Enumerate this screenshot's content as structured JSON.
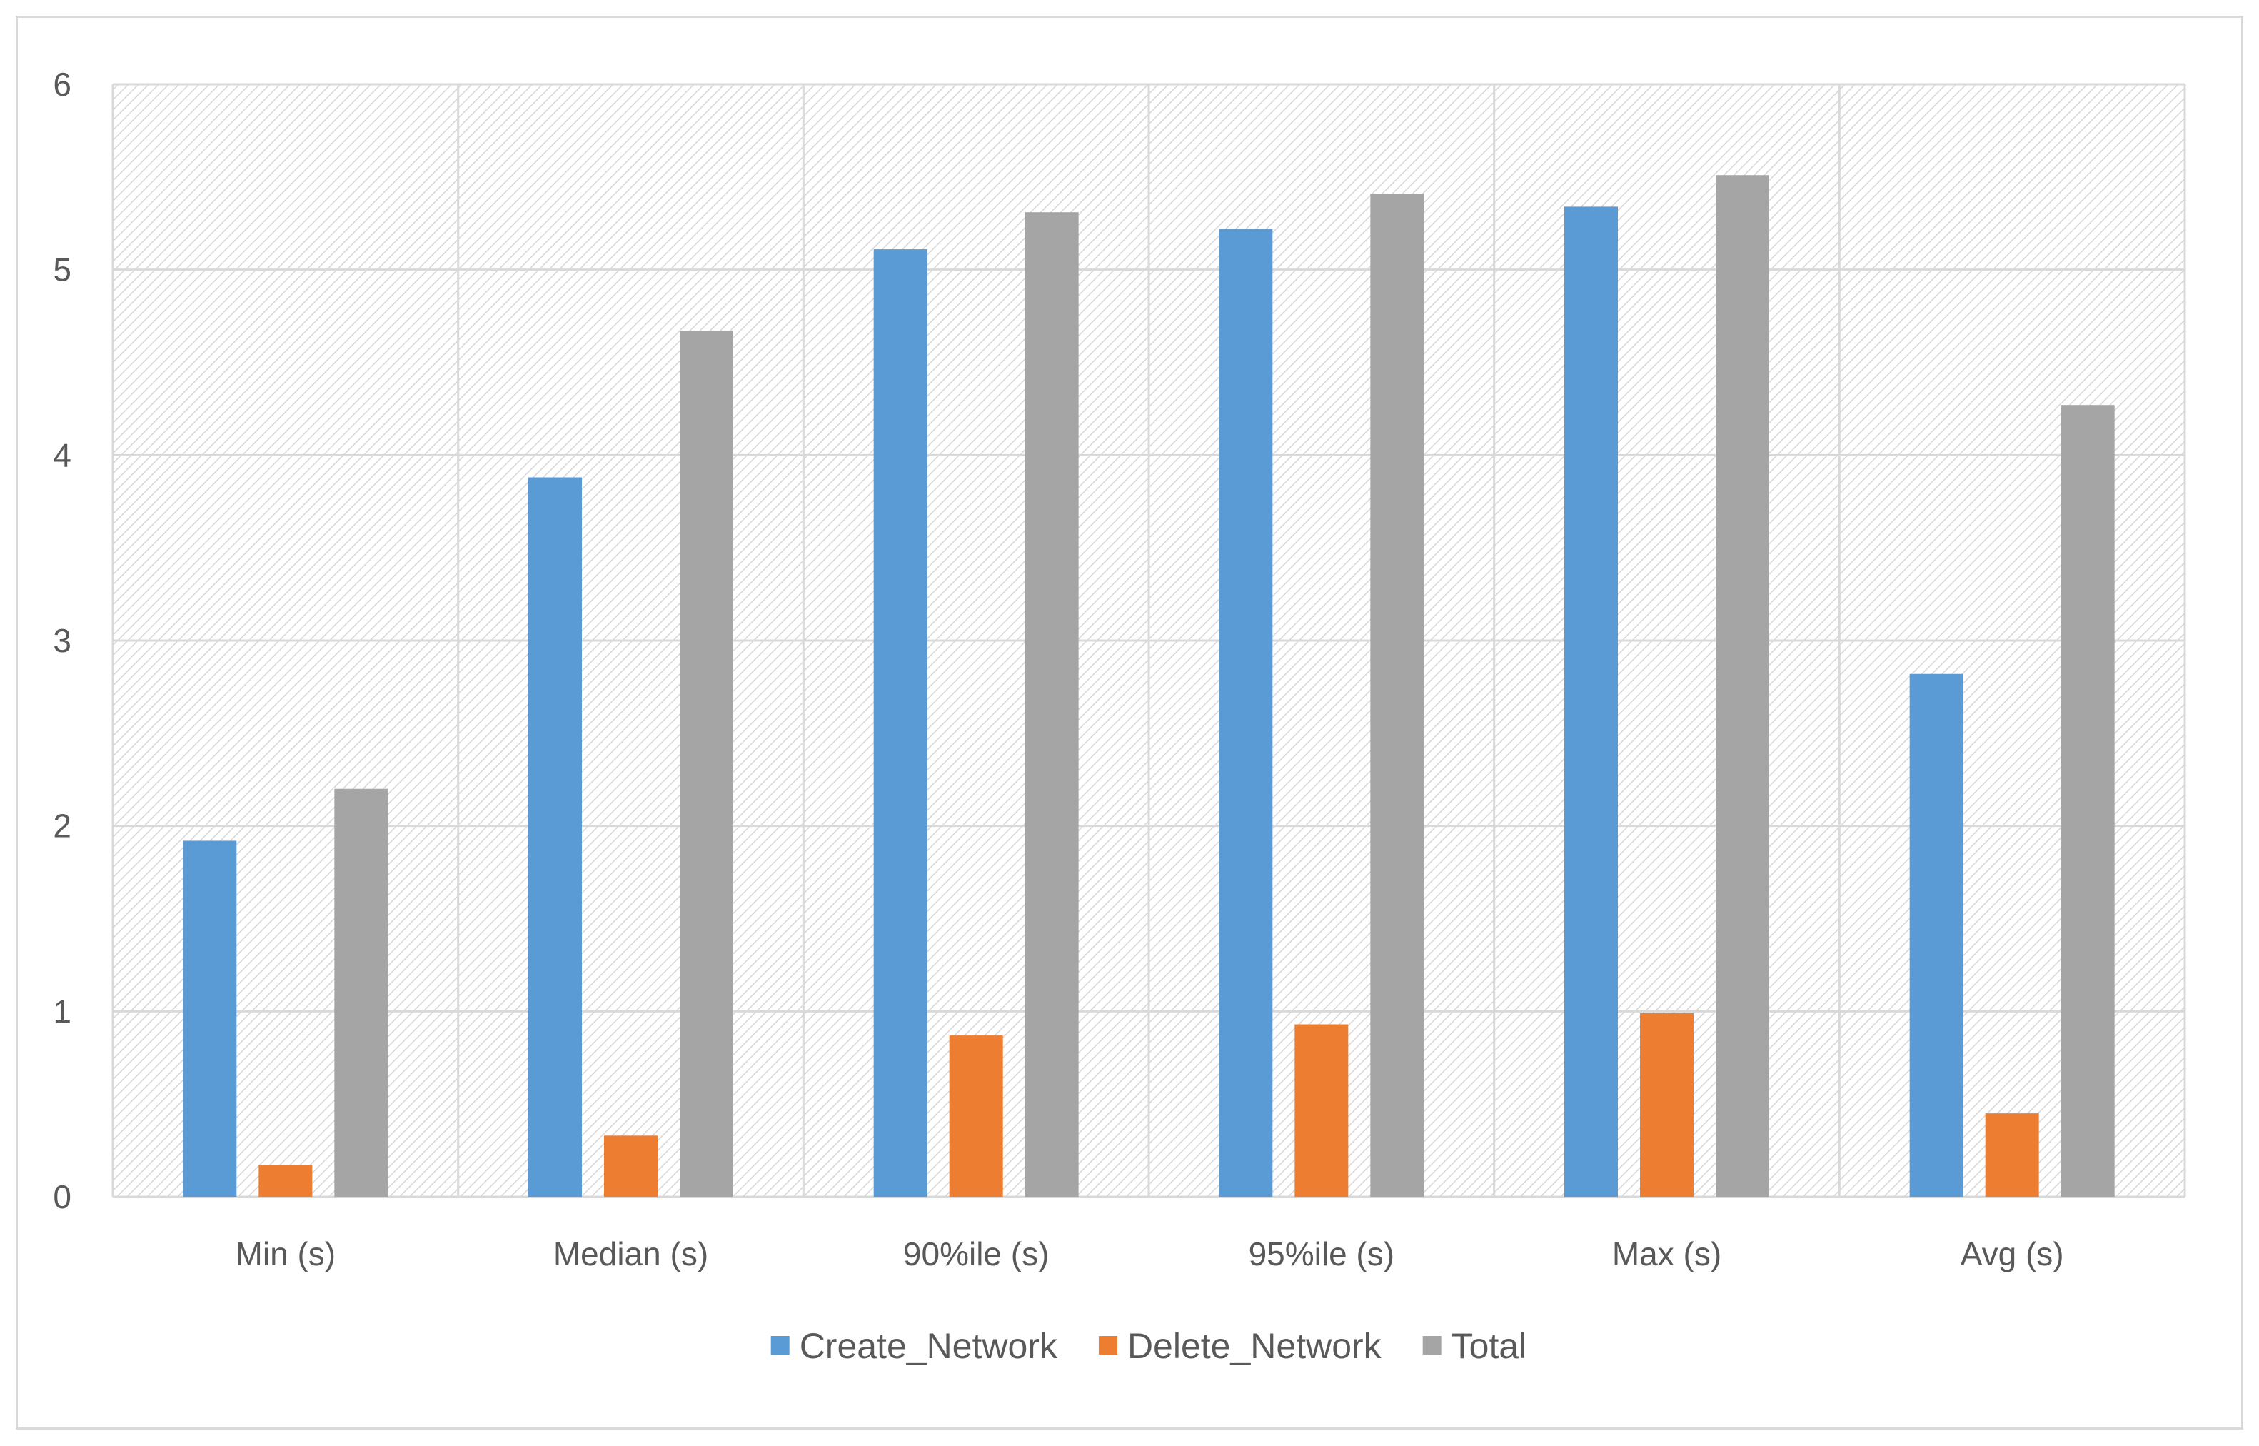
{
  "chart_data": {
    "type": "bar",
    "title": "",
    "xlabel": "",
    "ylabel": "",
    "categories": [
      "Min (s)",
      "Median (s)",
      "90%ile (s)",
      "95%ile (s)",
      "Max (s)",
      "Avg (s)"
    ],
    "series": [
      {
        "name": "Create_Network",
        "color": "#5b9bd5",
        "values": [
          1.92,
          3.88,
          5.11,
          5.22,
          5.34,
          2.82
        ]
      },
      {
        "name": "Delete_Network",
        "color": "#ed7d31",
        "values": [
          0.17,
          0.33,
          0.87,
          0.93,
          0.99,
          0.45
        ]
      },
      {
        "name": "Total",
        "color": "#a5a5a5",
        "values": [
          2.2,
          4.67,
          5.31,
          5.41,
          5.51,
          4.27
        ]
      }
    ],
    "ylim": [
      0,
      6
    ],
    "yticks": [
      0,
      1,
      2,
      3,
      4,
      5,
      6
    ],
    "grid": true,
    "plot_background": "diagonal-hatch",
    "legend_position": "bottom"
  }
}
